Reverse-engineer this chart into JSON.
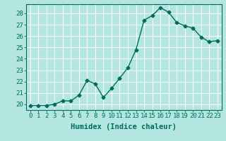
{
  "x": [
    0,
    1,
    2,
    3,
    4,
    5,
    6,
    7,
    8,
    9,
    10,
    11,
    12,
    13,
    14,
    15,
    16,
    17,
    18,
    19,
    20,
    21,
    22,
    23
  ],
  "y": [
    19.9,
    19.9,
    19.9,
    20.0,
    20.3,
    20.3,
    20.8,
    22.1,
    21.8,
    20.6,
    21.4,
    22.3,
    23.2,
    24.8,
    27.4,
    27.8,
    28.5,
    28.1,
    27.2,
    26.9,
    26.7,
    25.9,
    25.5,
    25.6
  ],
  "bg_color": "#b3e6e0",
  "line_color": "#006b5e",
  "marker": "D",
  "marker_size": 2.5,
  "xlabel": "Humidex (Indice chaleur)",
  "ylabel": "",
  "xlim": [
    -0.5,
    23.5
  ],
  "ylim": [
    19.5,
    28.8
  ],
  "yticks": [
    20,
    21,
    22,
    23,
    24,
    25,
    26,
    27,
    28
  ],
  "xticks": [
    0,
    1,
    2,
    3,
    4,
    5,
    6,
    7,
    8,
    9,
    10,
    11,
    12,
    13,
    14,
    15,
    16,
    17,
    18,
    19,
    20,
    21,
    22,
    23
  ],
  "grid_color": "#ffffff",
  "tick_color": "#006b5e",
  "label_color": "#006b5e",
  "spine_color": "#006b5e",
  "line_width": 1.0,
  "font_size_ticks": 6.5,
  "font_size_xlabel": 7.5
}
